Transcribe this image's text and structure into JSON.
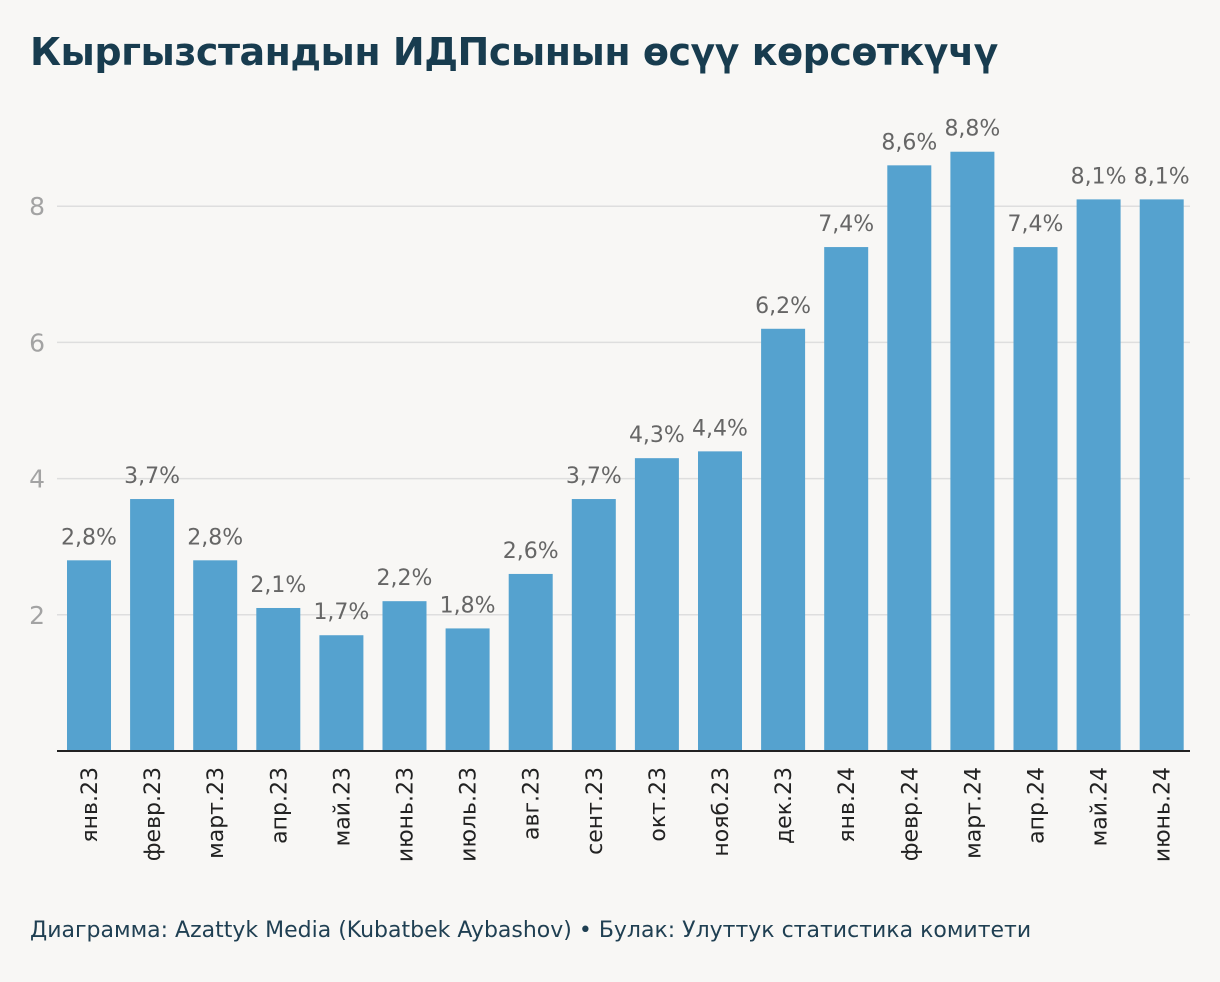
{
  "header": {
    "title": "Кыргызстандын ИДПсынын өсүү көрсөткүчү"
  },
  "footer": {
    "text": "Диаграмма: Azattyk Media (Kubatbek Aybashov) • Булак: Улуттук статистика комитети"
  },
  "colors": {
    "bar": "#55a2cf",
    "grid": "#dedede",
    "axis": "#222222",
    "label": "#666666",
    "tick": "#a3a3a3",
    "title": "#183c4f"
  },
  "chart_data": {
    "type": "bar",
    "title": "Кыргызстандын ИДПсынын өсүү көрсөткүчү",
    "categories": [
      "янв.23",
      "февр.23",
      "март.23",
      "апр.23",
      "май.23",
      "июнь.23",
      "июль.23",
      "авг.23",
      "сент.23",
      "окт.23",
      "нояб.23",
      "дек.23",
      "янв.24",
      "февр.24",
      "март.24",
      "апр.24",
      "май.24",
      "июнь.24"
    ],
    "values": [
      2.8,
      3.7,
      2.8,
      2.1,
      1.7,
      2.2,
      1.8,
      2.6,
      3.7,
      4.3,
      4.4,
      6.2,
      7.4,
      8.6,
      8.8,
      7.4,
      8.1,
      8.1
    ],
    "value_labels": [
      "2,8%",
      "3,7%",
      "2,8%",
      "2,1%",
      "1,7%",
      "2,2%",
      "1,8%",
      "2,6%",
      "3,7%",
      "4,3%",
      "4,4%",
      "6,2%",
      "7,4%",
      "8,6%",
      "8,8%",
      "7,4%",
      "8,1%",
      "8,1%"
    ],
    "yticks": [
      2,
      4,
      6,
      8
    ],
    "ylim": [
      0,
      9.3
    ],
    "xlabel": "",
    "ylabel": "",
    "grid": true
  }
}
